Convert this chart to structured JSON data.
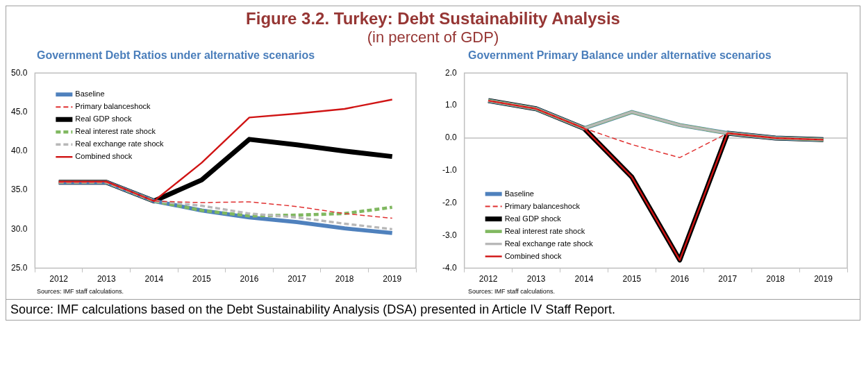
{
  "chart_data": [
    {
      "type": "other",
      "title": "Figure 3.2. Turkey: Debt Sustainability Analysis",
      "subtitle": "(in percent of GDP)",
      "annotations": [
        "Source: IMF calculations based on the Debt Sustainability Analysis (DSA) presented in Article IV Staff Report."
      ]
    },
    {
      "type": "line",
      "title": "Government Debt Ratios under alternative scenarios",
      "categories": [
        "2012",
        "2013",
        "2014",
        "2015",
        "2016",
        "2017",
        "2018",
        "2019"
      ],
      "series": [
        {
          "name": "Baseline",
          "color": "#4f81bd",
          "line_style": "solid",
          "values": [
            36.0,
            36.0,
            33.6,
            32.4,
            31.5,
            30.9,
            30.1,
            29.5
          ]
        },
        {
          "name": "Primary balanceshock",
          "color": "#e03030",
          "line_style": "dashed",
          "values": [
            36.0,
            36.0,
            33.6,
            33.4,
            33.5,
            32.9,
            32.0,
            31.4
          ]
        },
        {
          "name": "Real GDP shock",
          "color": "#000000",
          "line_style": "solid",
          "values": [
            36.0,
            36.0,
            33.6,
            36.3,
            41.5,
            40.8,
            40.0,
            39.3
          ]
        },
        {
          "name": "Real interest rate shock",
          "color": "#80b860",
          "line_style": "dashed",
          "values": [
            36.0,
            36.0,
            33.6,
            32.4,
            31.7,
            31.8,
            32.0,
            32.8
          ]
        },
        {
          "name": "Real exchange rate shock",
          "color": "#b8b8b8",
          "line_style": "dashed",
          "values": [
            36.0,
            36.0,
            33.6,
            33.0,
            32.0,
            31.5,
            30.7,
            30.0
          ]
        },
        {
          "name": "Combined shock",
          "color": "#d01414",
          "line_style": "solid",
          "values": [
            36.1,
            36.1,
            33.6,
            38.5,
            44.3,
            44.8,
            45.4,
            46.6
          ]
        }
      ],
      "ylim": [
        25,
        50
      ],
      "yticks": [
        {
          "value": 25,
          "label": "25.0"
        },
        {
          "value": 30,
          "label": "30.0"
        },
        {
          "value": 35,
          "label": "35.0"
        },
        {
          "value": 40,
          "label": "40.0"
        },
        {
          "value": 45,
          "label": "45.0"
        },
        {
          "value": 50,
          "label": "50.0"
        }
      ],
      "legend": "top left",
      "marker": "none",
      "annotations": [
        "Sources: IMF staff calculations."
      ]
    },
    {
      "type": "line",
      "title": "Government Primary Balance under alternative scenarios",
      "categories": [
        "2012",
        "2013",
        "2014",
        "2015",
        "2016",
        "2017",
        "2018",
        "2019"
      ],
      "series": [
        {
          "name": "Baseline",
          "color": "#4f81bd",
          "line_style": "solid",
          "values": [
            1.15,
            0.9,
            0.3,
            0.8,
            0.4,
            0.15,
            0.0,
            -0.05
          ]
        },
        {
          "name": "Primary balanceshock",
          "color": "#e03030",
          "line_style": "dashed",
          "values": [
            1.15,
            0.9,
            0.3,
            -0.2,
            -0.6,
            0.15,
            0.0,
            -0.05
          ]
        },
        {
          "name": "Real GDP shock",
          "color": "#000000",
          "line_style": "solid",
          "values": [
            1.15,
            0.9,
            0.3,
            -1.2,
            -3.75,
            0.15,
            0.0,
            -0.05
          ]
        },
        {
          "name": "Real interest rate shock",
          "color": "#80b860",
          "line_style": "solid",
          "values": [
            1.15,
            0.9,
            0.3,
            0.8,
            0.4,
            0.15,
            0.0,
            -0.05
          ]
        },
        {
          "name": "Real exchange rate shock",
          "color": "#b8b8b8",
          "line_style": "solid",
          "values": [
            1.15,
            0.9,
            0.3,
            0.8,
            0.4,
            0.15,
            0.0,
            -0.05
          ]
        },
        {
          "name": "Combined shock",
          "color": "#d01414",
          "line_style": "solid",
          "values": [
            1.15,
            0.9,
            0.3,
            -1.2,
            -3.75,
            0.15,
            0.0,
            -0.05
          ]
        }
      ],
      "ylim": [
        -4,
        2
      ],
      "yticks": [
        {
          "value": -4,
          "label": "-4.0"
        },
        {
          "value": -3,
          "label": "-3.0"
        },
        {
          "value": -2,
          "label": "-2.0"
        },
        {
          "value": -1,
          "label": "-1.0"
        },
        {
          "value": 0,
          "label": "0.0"
        },
        {
          "value": 1,
          "label": "1.0"
        },
        {
          "value": 2,
          "label": "2.0"
        }
      ],
      "ref_lines": [
        {
          "axis": "y",
          "value": 0,
          "color": "#bfbfbf"
        }
      ],
      "legend": "bottom left",
      "marker": "none",
      "annotations": [
        "Sources: IMF staff calculations."
      ]
    }
  ]
}
